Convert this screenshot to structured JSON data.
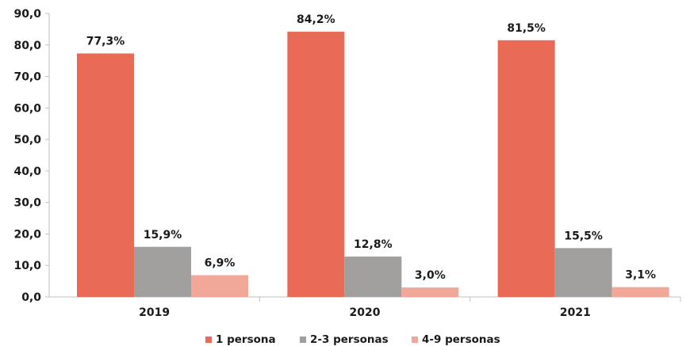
{
  "chart_data": {
    "type": "bar",
    "categories": [
      "2019",
      "2020",
      "2021"
    ],
    "series": [
      {
        "name": "1 persona",
        "color": "#E96A55",
        "values": [
          77.3,
          84.2,
          81.5
        ],
        "labels": [
          "77,3%",
          "84,2%",
          "81,5%"
        ]
      },
      {
        "name": "2-3 personas",
        "color": "#A09F9D",
        "values": [
          15.9,
          12.8,
          15.5
        ],
        "labels": [
          "15,9%",
          "12,8%",
          "15,5%"
        ]
      },
      {
        "name": "4-9 personas",
        "color": "#F2A898",
        "values": [
          6.9,
          3.0,
          3.1
        ],
        "labels": [
          "6,9%",
          "3,0%",
          "3,1%"
        ]
      }
    ],
    "yticks": [
      "0,0",
      "10,0",
      "20,0",
      "30,0",
      "40,0",
      "50,0",
      "60,0",
      "70,0",
      "80,0",
      "90,0"
    ],
    "ylim": [
      0,
      90
    ],
    "title": "",
    "xlabel": "",
    "ylabel": "",
    "legend": "bottom",
    "grid": false
  }
}
